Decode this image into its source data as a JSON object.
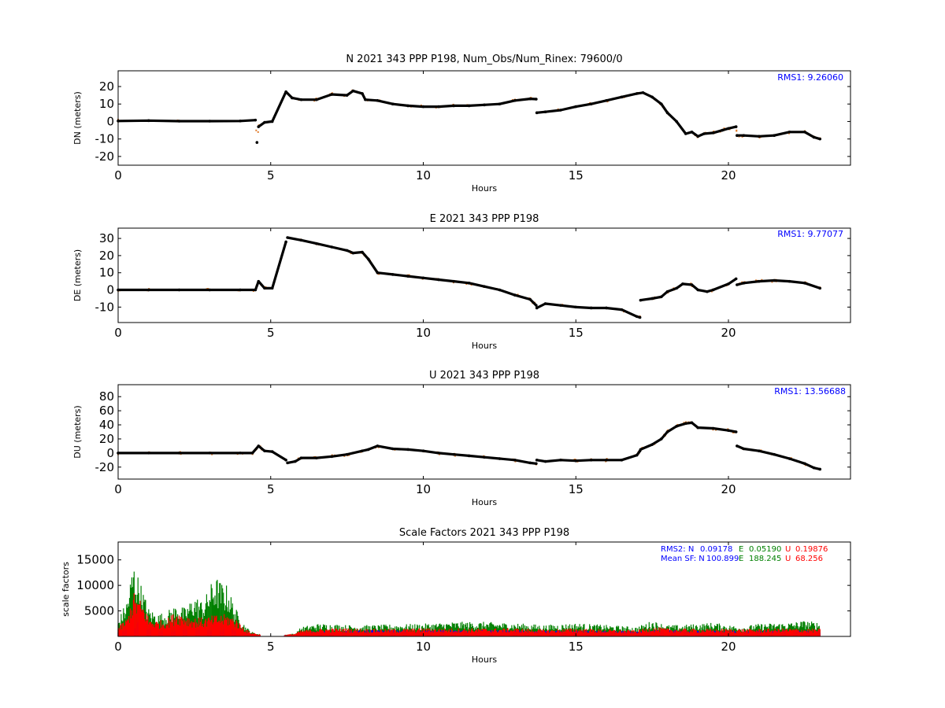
{
  "colors": {
    "data_black": "#000000",
    "data_orange": "#e07b2a",
    "rms_blue": "#0000ff",
    "green": "#008000",
    "red": "#ff0000"
  },
  "chart_data": [
    {
      "type": "scatter",
      "title": "N 2021 343 PPP  P198, Num_Obs/Num_Rinex: 79600/0",
      "xlabel": "Hours",
      "ylabel": "DN (meters)",
      "xlim": [
        0,
        24
      ],
      "ylim": [
        -25,
        29
      ],
      "xticks": [
        0,
        5,
        10,
        15,
        20
      ],
      "yticks": [
        -20,
        -10,
        0,
        10,
        20
      ],
      "rms_label": "RMS1:  9.26060",
      "series": [
        {
          "x": [
            0,
            1,
            2,
            3,
            4,
            4.5,
            4.55,
            4.6,
            4.8,
            5.05,
            5.5,
            5.7,
            6.0,
            6.5,
            7.0,
            7.5,
            7.7,
            8.0,
            8.1,
            8.5,
            9.0,
            9.5,
            10.0,
            10.5,
            11.0,
            11.5,
            12.0,
            12.5,
            13.0,
            13.5,
            13.7,
            13.72,
            14.0,
            14.5,
            15.0,
            15.5,
            16.0,
            16.5,
            17.0,
            17.2,
            17.5,
            17.8,
            18.0,
            18.3,
            18.6,
            18.8,
            19.0,
            19.2,
            19.5,
            19.8,
            20.0,
            20.25,
            20.28,
            20.5,
            21.0,
            21.5,
            22.0,
            22.5,
            22.8,
            23.0
          ],
          "y": [
            0.3,
            0.5,
            0.2,
            0.2,
            0.3,
            0.8,
            -12,
            -3,
            -0.5,
            0,
            17,
            13.5,
            12.5,
            12.5,
            15.5,
            15,
            17.5,
            16,
            12.5,
            12,
            10,
            9,
            8.5,
            8.5,
            9,
            9,
            9.5,
            10,
            12,
            13,
            12.8,
            5,
            5.5,
            6.5,
            8.5,
            10,
            12,
            14,
            16,
            16.5,
            14,
            10,
            5,
            0,
            -7,
            -6,
            -8.5,
            -7,
            -6.5,
            -5,
            -4,
            -3,
            -8,
            -8,
            -8.5,
            -8,
            -6,
            -6,
            -9,
            -10
          ]
        }
      ]
    },
    {
      "type": "scatter",
      "title": "E 2021 343 PPP  P198",
      "xlabel": "Hours",
      "ylabel": "DE (meters)",
      "xlim": [
        0,
        24
      ],
      "ylim": [
        -19,
        36
      ],
      "xticks": [
        0,
        5,
        10,
        15,
        20
      ],
      "yticks": [
        -10,
        0,
        10,
        20,
        30
      ],
      "rms_label": "RMS1:  9.77077",
      "series": [
        {
          "x": [
            0,
            1,
            2,
            3,
            4,
            4.5,
            4.6,
            4.8,
            5.05,
            5.5,
            5.55,
            6.0,
            6.5,
            7.0,
            7.5,
            7.7,
            8.0,
            8.2,
            8.5,
            9.0,
            9.5,
            10.0,
            10.5,
            11.0,
            11.5,
            12.0,
            12.5,
            13.0,
            13.5,
            13.7,
            13.72,
            14.0,
            14.5,
            15.0,
            15.5,
            16.0,
            16.5,
            17.0,
            17.1,
            17.12,
            17.5,
            17.8,
            18.0,
            18.3,
            18.5,
            18.8,
            19.0,
            19.3,
            19.5,
            20.0,
            20.25,
            20.28,
            20.5,
            21.0,
            21.5,
            22.0,
            22.5,
            23.0
          ],
          "y": [
            0,
            0,
            0,
            0,
            0,
            0,
            5,
            1,
            1,
            28,
            30.5,
            29,
            27,
            25,
            23,
            21.5,
            22,
            18,
            10,
            9,
            8,
            7,
            6,
            5,
            4,
            2,
            0,
            -3,
            -5.5,
            -9,
            -10.5,
            -8,
            -9,
            -10,
            -10.5,
            -10.5,
            -11.5,
            -15.5,
            -16,
            -6,
            -5,
            -4,
            -1,
            1,
            3.5,
            3,
            0,
            -1,
            0,
            3.5,
            6.5,
            3,
            4,
            5,
            5.5,
            5,
            4,
            1
          ]
        }
      ]
    },
    {
      "type": "scatter",
      "title": "U 2021 343 PPP  P198",
      "xlabel": "Hours",
      "ylabel": "DU (meters)",
      "xlim": [
        0,
        24
      ],
      "ylim": [
        -37,
        97
      ],
      "xticks": [
        0,
        5,
        10,
        15,
        20
      ],
      "yticks": [
        -20,
        0,
        20,
        40,
        60,
        80
      ],
      "rms_label": "RMS1: 13.56688",
      "series": [
        {
          "x": [
            0,
            1,
            2,
            3,
            4,
            4.4,
            4.6,
            4.8,
            5.05,
            5.5,
            5.55,
            5.8,
            6.0,
            6.5,
            7.0,
            7.5,
            8.0,
            8.2,
            8.5,
            9.0,
            9.5,
            10.0,
            10.5,
            11.0,
            11.5,
            12.0,
            12.5,
            13.0,
            13.5,
            13.7,
            13.72,
            14.0,
            14.5,
            15.0,
            15.5,
            16.0,
            16.5,
            17.0,
            17.1,
            17.12,
            17.5,
            17.8,
            18.0,
            18.3,
            18.6,
            18.8,
            19.0,
            19.5,
            20.0,
            20.25,
            20.28,
            20.5,
            21.0,
            21.5,
            22.0,
            22.5,
            22.8,
            23.0
          ],
          "y": [
            0,
            0,
            0,
            0,
            0,
            0,
            10,
            3,
            2,
            -10,
            -14,
            -12,
            -7,
            -7,
            -5,
            -2,
            3,
            5,
            10,
            6,
            5,
            3,
            0,
            -2,
            -4,
            -6,
            -8,
            -10,
            -14,
            -15,
            -10,
            -12,
            -10,
            -11,
            -10,
            -10,
            -10,
            -3,
            3,
            5,
            12,
            20,
            30,
            38,
            42,
            43,
            36,
            35,
            32,
            30,
            10,
            6,
            3,
            -2,
            -8,
            -15,
            -21,
            -23
          ]
        }
      ]
    },
    {
      "type": "scatter",
      "title": "Scale Factors 2021 343 PPP  P198",
      "xlabel": "Hours",
      "ylabel": "scale factors",
      "xlim": [
        0,
        24
      ],
      "ylim": [
        0,
        18500
      ],
      "xticks": [
        0,
        5,
        10,
        15,
        20
      ],
      "yticks": [
        5000,
        10000,
        15000
      ],
      "legend_placement": "top-right",
      "stats": {
        "rms2_label": "RMS2: N",
        "rms2_n": "0.09178",
        "rms2_e_label": "E",
        "rms2_e": "0.05190",
        "rms2_u_label": "U",
        "rms2_u": "0.19876",
        "mean_label": "Mean SF: N",
        "mean_n": "100.899",
        "mean_e_label": "E",
        "mean_e": "188.245",
        "mean_u_label": "U",
        "mean_u": "68.256"
      },
      "series": [
        {
          "name": "N",
          "x": [
            0,
            0.5,
            0.8,
            1.0,
            1.5,
            2.0,
            2.5,
            3.0,
            3.5,
            4.0,
            4.3,
            4.6,
            5.0,
            5.5,
            5.8,
            6.0,
            6.5,
            7.0,
            7.5,
            8.0,
            8.5,
            9.0,
            10.0,
            11.0,
            12.0,
            13.0,
            14.0,
            15.0,
            16.0,
            17.0,
            17.5,
            18.0,
            19.0,
            20.0,
            21.0,
            22.0,
            23.0
          ],
          "y": [
            700,
            2000,
            2500,
            1400,
            800,
            1100,
            1300,
            1400,
            1300,
            1000,
            500,
            300,
            200,
            200,
            250,
            700,
            800,
            800,
            900,
            1000,
            1000,
            1000,
            1000,
            1000,
            1000,
            1000,
            900,
            900,
            900,
            900,
            1000,
            1000,
            900,
            900,
            900,
            900,
            900
          ]
        },
        {
          "name": "E",
          "x": [
            0,
            0.3,
            0.5,
            0.7,
            0.9,
            1.0,
            1.3,
            1.6,
            1.9,
            2.2,
            2.5,
            2.8,
            3.0,
            3.2,
            3.4,
            3.6,
            3.8,
            4.0,
            4.2,
            4.4,
            4.6,
            5.0,
            5.5,
            5.8,
            6.0,
            6.5,
            7.0,
            7.5,
            8.0,
            8.5,
            9.0,
            10.0,
            11.0,
            12.0,
            13.0,
            14.0,
            15.0,
            16.0,
            17.0,
            17.5,
            18.0,
            18.5,
            19.0,
            19.5,
            20.0,
            20.5,
            21.0,
            22.0,
            22.5,
            23.0
          ],
          "y": [
            2500,
            6000,
            12000,
            9000,
            6000,
            4500,
            3500,
            4000,
            5000,
            4500,
            6500,
            5500,
            8000,
            9500,
            8500,
            8000,
            5000,
            3000,
            1500,
            700,
            400,
            300,
            300,
            500,
            1500,
            2000,
            2000,
            1800,
            1800,
            1800,
            1900,
            2000,
            2300,
            2300,
            2100,
            1800,
            2100,
            1800,
            1500,
            2500,
            1800,
            1800,
            2000,
            2200,
            1800,
            1600,
            2000,
            2200,
            2500,
            2200
          ]
        },
        {
          "name": "U",
          "x": [
            0,
            0.3,
            0.5,
            0.7,
            0.9,
            1.0,
            1.3,
            1.6,
            1.9,
            2.2,
            2.5,
            2.8,
            3.0,
            3.3,
            3.6,
            3.9,
            4.0,
            4.3,
            4.6,
            5.0,
            5.5,
            5.8,
            6.0,
            6.5,
            7.0,
            7.5,
            8.0,
            8.5,
            9.0,
            10.0,
            11.0,
            12.0,
            13.0,
            14.0,
            15.0,
            16.0,
            17.0,
            17.5,
            18.0,
            19.0,
            20.0,
            21.0,
            22.0,
            23.0
          ],
          "y": [
            1500,
            3000,
            7000,
            6000,
            4500,
            3000,
            2500,
            2800,
            4000,
            3500,
            3000,
            3000,
            3200,
            3500,
            3500,
            2800,
            2000,
            800,
            400,
            300,
            300,
            500,
            1000,
            1200,
            1300,
            1300,
            1200,
            1200,
            1200,
            1300,
            1300,
            1300,
            1300,
            1100,
            1300,
            1100,
            1000,
            1500,
            1300,
            1200,
            1200,
            1200,
            1300,
            1200
          ]
        }
      ]
    }
  ]
}
